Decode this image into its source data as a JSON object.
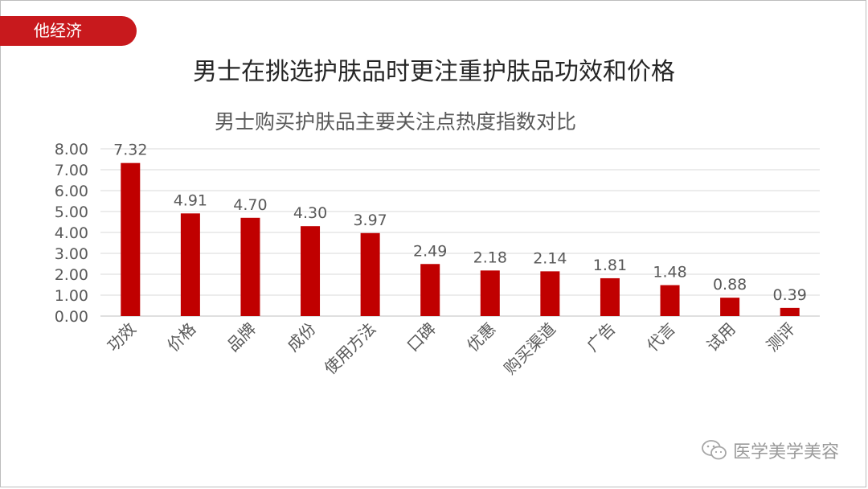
{
  "badge": {
    "label": "他经济"
  },
  "headline": "男士在挑选护肤品时更注重护肤品功效和价格",
  "watermark": {
    "text": "医学美学美容",
    "icon": "wechat-icon"
  },
  "colors": {
    "accent": "#c8191d",
    "bar": "#c00000",
    "text": "#595959",
    "grid": "#d9d9d9"
  },
  "chart_data": {
    "type": "bar",
    "title": "男士购买护肤品主要关注点热度指数对比",
    "xlabel": "",
    "ylabel": "",
    "categories": [
      "功效",
      "价格",
      "品牌",
      "成份",
      "使用方法",
      "口碑",
      "优惠",
      "购买渠道",
      "广告",
      "代言",
      "试用",
      "测评"
    ],
    "values": [
      7.32,
      4.91,
      4.7,
      4.3,
      3.97,
      2.49,
      2.18,
      2.14,
      1.81,
      1.48,
      0.88,
      0.39
    ],
    "value_labels": [
      "7.32",
      "4.91",
      "4.70",
      "4.30",
      "3.97",
      "2.49",
      "2.18",
      "2.14",
      "1.81",
      "1.48",
      "0.88",
      "0.39"
    ],
    "yticks": [
      "0.00",
      "1.00",
      "2.00",
      "3.00",
      "4.00",
      "5.00",
      "6.00",
      "7.00",
      "8.00"
    ],
    "ylim": [
      0,
      8
    ],
    "grid": true,
    "legend": "none"
  }
}
